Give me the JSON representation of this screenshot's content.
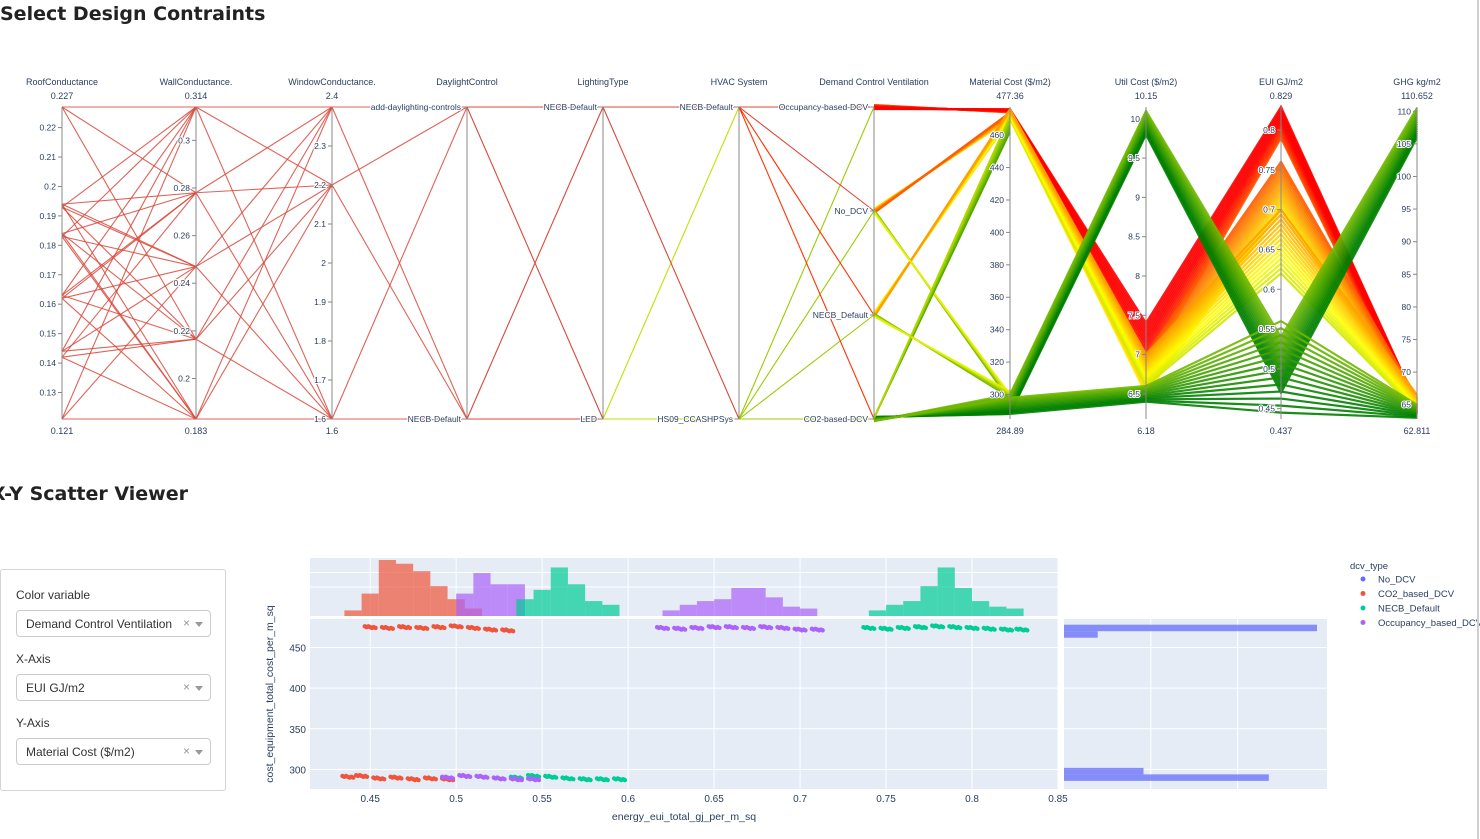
{
  "sections": {
    "parcoords_title": "Select Design Contraints",
    "scatter_title": "X-Y Scatter Viewer"
  },
  "controls": {
    "color_variable": {
      "label": "Color variable",
      "value": "Demand Control Ventilation"
    },
    "x_axis": {
      "label": "X-Axis",
      "value": "EUI GJ/m2"
    },
    "y_axis": {
      "label": "Y-Axis",
      "value": "Material Cost ($/m2)"
    },
    "clear_glyph": "×"
  },
  "colors": {
    "parcoord_line": "#d9483b",
    "scale_low": "#008000",
    "scale_mid": "#ffff00",
    "scale_high": "#ff0000",
    "No_DCV": "#636efa",
    "CO2_based_DCV": "#ef553b",
    "NECB_Default": "#00cc96",
    "Occupancy_based_DCV": "#ab63fa",
    "plot_bg": "#e5ecf6"
  },
  "chart_data": [
    {
      "type": "parallel_coordinates",
      "dimensions": [
        {
          "label": "RoofConductance",
          "min_label": "0.121",
          "max_label": "0.227",
          "range": [
            0.121,
            0.227
          ],
          "ticks": [
            {
              "v": 0.13,
              "t": "0.13"
            },
            {
              "v": 0.14,
              "t": "0.14"
            },
            {
              "v": 0.15,
              "t": "0.15"
            },
            {
              "v": 0.16,
              "t": "0.16"
            },
            {
              "v": 0.17,
              "t": "0.17"
            },
            {
              "v": 0.18,
              "t": "0.18"
            },
            {
              "v": 0.19,
              "t": "0.19"
            },
            {
              "v": 0.2,
              "t": "0.2"
            },
            {
              "v": 0.21,
              "t": "0.21"
            },
            {
              "v": 0.22,
              "t": "0.22"
            }
          ],
          "line_values": [
            0.121,
            0.142,
            0.144,
            0.162,
            0.163,
            0.183,
            0.184,
            0.193,
            0.194,
            0.227
          ]
        },
        {
          "label": "WallConductance.",
          "min_label": "0.183",
          "max_label": "0.314",
          "range": [
            0.183,
            0.314
          ],
          "ticks": [
            {
              "v": 0.2,
              "t": "0.2"
            },
            {
              "v": 0.22,
              "t": "0.22"
            },
            {
              "v": 0.24,
              "t": "0.24"
            },
            {
              "v": 0.26,
              "t": "0.26"
            },
            {
              "v": 0.28,
              "t": "0.28"
            },
            {
              "v": 0.3,
              "t": "0.3"
            }
          ],
          "line_values": [
            0.183,
            0.2165,
            0.247,
            0.278,
            0.314
          ]
        },
        {
          "label": "WindowConductance.",
          "min_label": "1.6",
          "max_label": "2.4",
          "range": [
            1.6,
            2.4
          ],
          "ticks": [
            {
              "v": 1.6,
              "t": "1.6"
            },
            {
              "v": 1.7,
              "t": "1.7"
            },
            {
              "v": 1.8,
              "t": "1.8"
            },
            {
              "v": 1.9,
              "t": "1.9"
            },
            {
              "v": 2.0,
              "t": "2"
            },
            {
              "v": 2.1,
              "t": "2.1"
            },
            {
              "v": 2.2,
              "t": "2.2"
            },
            {
              "v": 2.3,
              "t": "2.3"
            }
          ],
          "line_values": [
            1.6,
            2.2,
            2.4
          ]
        },
        {
          "label": "DaylightControl",
          "categories": [
            "NECB-Default",
            "add-daylighting-controls"
          ]
        },
        {
          "label": "LightingType",
          "categories": [
            "LED",
            "NECB-Default"
          ]
        },
        {
          "label": "HVAC System",
          "categories": [
            "HS09_CCASHPSys",
            "NECB-Default"
          ]
        },
        {
          "label": "Demand Control Ventilation",
          "categories": [
            "CO2-based-DCV",
            "NECB_Default",
            "No_DCV",
            "Occupancy-based-DCV"
          ]
        },
        {
          "label": "Material Cost ($/m2)",
          "min_label": "284.89",
          "max_label": "477.36",
          "range": [
            284.89,
            477.36
          ],
          "ticks": [
            {
              "v": 300,
              "t": "300"
            },
            {
              "v": 320,
              "t": "320"
            },
            {
              "v": 340,
              "t": "340"
            },
            {
              "v": 360,
              "t": "360"
            },
            {
              "v": 380,
              "t": "380"
            },
            {
              "v": 400,
              "t": "400"
            },
            {
              "v": 420,
              "t": "420"
            },
            {
              "v": 440,
              "t": "440"
            },
            {
              "v": 460,
              "t": "460"
            }
          ]
        },
        {
          "label": "Util Cost ($/m2)",
          "min_label": "6.18",
          "max_label": "10.15",
          "range": [
            6.18,
            10.15
          ],
          "ticks": [
            {
              "v": 6.5,
              "t": "6.5"
            },
            {
              "v": 7,
              "t": "7"
            },
            {
              "v": 7.5,
              "t": "7.5"
            },
            {
              "v": 8,
              "t": "8"
            },
            {
              "v": 8.5,
              "t": "8.5"
            },
            {
              "v": 9,
              "t": "9"
            },
            {
              "v": 9.5,
              "t": "9.5"
            },
            {
              "v": 10,
              "t": "10"
            }
          ]
        },
        {
          "label": "EUI GJ/m2",
          "min_label": "0.437",
          "max_label": "0.829",
          "range": [
            0.437,
            0.829
          ],
          "ticks": [
            {
              "v": 0.45,
              "t": "0.45"
            },
            {
              "v": 0.5,
              "t": "0.5"
            },
            {
              "v": 0.55,
              "t": "0.55"
            },
            {
              "v": 0.6,
              "t": "0.6"
            },
            {
              "v": 0.65,
              "t": "0.65"
            },
            {
              "v": 0.7,
              "t": "0.7"
            },
            {
              "v": 0.75,
              "t": "0.75"
            },
            {
              "v": 0.8,
              "t": "0.8"
            }
          ]
        },
        {
          "label": "GHG kg/m2",
          "min_label": "62.811",
          "max_label": "110.652",
          "range": [
            62.811,
            110.652
          ],
          "ticks": [
            {
              "v": 65,
              "t": "65"
            },
            {
              "v": 70,
              "t": "70"
            },
            {
              "v": 75,
              "t": "75"
            },
            {
              "v": 80,
              "t": "80"
            },
            {
              "v": 85,
              "t": "85"
            },
            {
              "v": 90,
              "t": "90"
            },
            {
              "v": 95,
              "t": "95"
            },
            {
              "v": 100,
              "t": "100"
            },
            {
              "v": 105,
              "t": "105"
            },
            {
              "v": 110,
              "t": "110"
            }
          ]
        }
      ],
      "color_bundles": [
        {
          "material": [
            474,
            476
          ],
          "util": [
            6.8,
            7.4
          ],
          "eui": [
            0.79,
            0.829
          ],
          "ghg": [
            63.5,
            65
          ],
          "tone": "high"
        },
        {
          "material": [
            470,
            474
          ],
          "util": [
            6.5,
            7.0
          ],
          "eui": [
            0.7,
            0.76
          ],
          "ghg": [
            64,
            66
          ],
          "tone": "mid"
        },
        {
          "material": [
            470,
            476
          ],
          "util": [
            6.6,
            7.0
          ],
          "eui": [
            0.62,
            0.7
          ],
          "ghg": [
            64,
            66.5
          ],
          "tone": "midlow"
        },
        {
          "material": [
            288,
            300
          ],
          "util": [
            9.8,
            10.1
          ],
          "eui": [
            0.47,
            0.54
          ],
          "ghg": [
            106,
            110.5
          ],
          "tone": "low"
        },
        {
          "material": [
            288,
            298
          ],
          "util": [
            6.4,
            6.6
          ],
          "eui": [
            0.445,
            0.56
          ],
          "ghg": [
            63,
            65
          ],
          "tone": "low"
        }
      ]
    },
    {
      "type": "scatter",
      "xlabel": "energy_eui_total_gj_per_m_sq",
      "ylabel": "cost_equipment_total_cost_per_m_sq",
      "xlim": [
        0.415,
        0.85
      ],
      "ylim": [
        276,
        485
      ],
      "x_ticks": [
        0.45,
        0.5,
        0.55,
        0.6,
        0.65,
        0.7,
        0.75,
        0.8,
        0.85
      ],
      "y_ticks": [
        300,
        350,
        400,
        450
      ],
      "legend_title": "dcv_type",
      "legend_position": "right",
      "series": [
        {
          "name": "No_DCV",
          "color_key": "No_DCV",
          "points": []
        },
        {
          "name": "CO2_based_DCV",
          "color_key": "CO2_based_DCV",
          "points": [
            [
              0.437,
              291
            ],
            [
              0.445,
              292
            ],
            [
              0.455,
              289
            ],
            [
              0.465,
              290
            ],
            [
              0.475,
              288
            ],
            [
              0.485,
              289
            ],
            [
              0.495,
              288
            ],
            [
              0.45,
              475
            ],
            [
              0.46,
              474
            ],
            [
              0.47,
              475
            ],
            [
              0.48,
              474
            ],
            [
              0.49,
              475
            ],
            [
              0.5,
              476
            ],
            [
              0.51,
              474
            ],
            [
              0.52,
              472
            ],
            [
              0.53,
              471
            ]
          ]
        },
        {
          "name": "NECB_Default",
          "color_key": "NECB_Default",
          "points": [
            [
              0.535,
              290
            ],
            [
              0.545,
              292
            ],
            [
              0.555,
              291
            ],
            [
              0.565,
              289
            ],
            [
              0.575,
              288
            ],
            [
              0.585,
              288
            ],
            [
              0.595,
              288
            ],
            [
              0.74,
              474
            ],
            [
              0.75,
              473
            ],
            [
              0.76,
              474
            ],
            [
              0.77,
              475
            ],
            [
              0.78,
              476
            ],
            [
              0.79,
              475
            ],
            [
              0.8,
              474
            ],
            [
              0.81,
              473
            ],
            [
              0.82,
              472
            ],
            [
              0.829,
              472
            ]
          ]
        },
        {
          "name": "Occupancy_based_DCV",
          "color_key": "Occupancy_based_DCV",
          "points": [
            [
              0.495,
              290
            ],
            [
              0.505,
              292
            ],
            [
              0.515,
              291
            ],
            [
              0.525,
              289
            ],
            [
              0.535,
              288
            ],
            [
              0.545,
              288
            ],
            [
              0.62,
              474
            ],
            [
              0.63,
              473
            ],
            [
              0.64,
              474
            ],
            [
              0.65,
              475
            ],
            [
              0.66,
              475
            ],
            [
              0.67,
              474
            ],
            [
              0.68,
              475
            ],
            [
              0.69,
              474
            ],
            [
              0.7,
              472
            ],
            [
              0.71,
              472
            ]
          ]
        }
      ],
      "marginal_x_histogram": {
        "series": [
          {
            "color_key": "CO2_based_DCV",
            "bins": [
              [
                0.435,
                0.445,
                3
              ],
              [
                0.445,
                0.455,
                12
              ],
              [
                0.455,
                0.465,
                30
              ],
              [
                0.465,
                0.475,
                28
              ],
              [
                0.475,
                0.485,
                24
              ],
              [
                0.485,
                0.495,
                16
              ],
              [
                0.495,
                0.505,
                9
              ],
              [
                0.505,
                0.515,
                4
              ]
            ]
          },
          {
            "color_key": "Occupancy_based_DCV",
            "bins": [
              [
                0.5,
                0.51,
                12
              ],
              [
                0.51,
                0.52,
                23
              ],
              [
                0.52,
                0.53,
                17
              ],
              [
                0.53,
                0.54,
                17
              ],
              [
                0.62,
                0.63,
                3
              ],
              [
                0.63,
                0.64,
                6
              ],
              [
                0.64,
                0.65,
                8
              ],
              [
                0.65,
                0.66,
                9
              ],
              [
                0.66,
                0.67,
                15
              ],
              [
                0.67,
                0.68,
                15
              ],
              [
                0.68,
                0.69,
                10
              ],
              [
                0.69,
                0.7,
                5
              ],
              [
                0.7,
                0.71,
                4
              ]
            ]
          },
          {
            "color_key": "NECB_Default",
            "bins": [
              [
                0.535,
                0.545,
                9
              ],
              [
                0.545,
                0.555,
                14
              ],
              [
                0.555,
                0.565,
                26
              ],
              [
                0.565,
                0.575,
                17
              ],
              [
                0.575,
                0.585,
                8
              ],
              [
                0.585,
                0.595,
                6
              ],
              [
                0.74,
                0.75,
                3
              ],
              [
                0.75,
                0.76,
                6
              ],
              [
                0.76,
                0.77,
                8
              ],
              [
                0.77,
                0.78,
                16
              ],
              [
                0.78,
                0.79,
                26
              ],
              [
                0.79,
                0.8,
                15
              ],
              [
                0.8,
                0.81,
                8
              ],
              [
                0.81,
                0.82,
                5
              ],
              [
                0.82,
                0.83,
                4
              ]
            ]
          }
        ]
      },
      "marginal_y_histogram": {
        "color_key": "No_DCV",
        "bins": [
          [
            470,
            478,
            105
          ],
          [
            462,
            470,
            14
          ],
          [
            294,
            302,
            33
          ],
          [
            286,
            294,
            85
          ]
        ]
      }
    }
  ]
}
